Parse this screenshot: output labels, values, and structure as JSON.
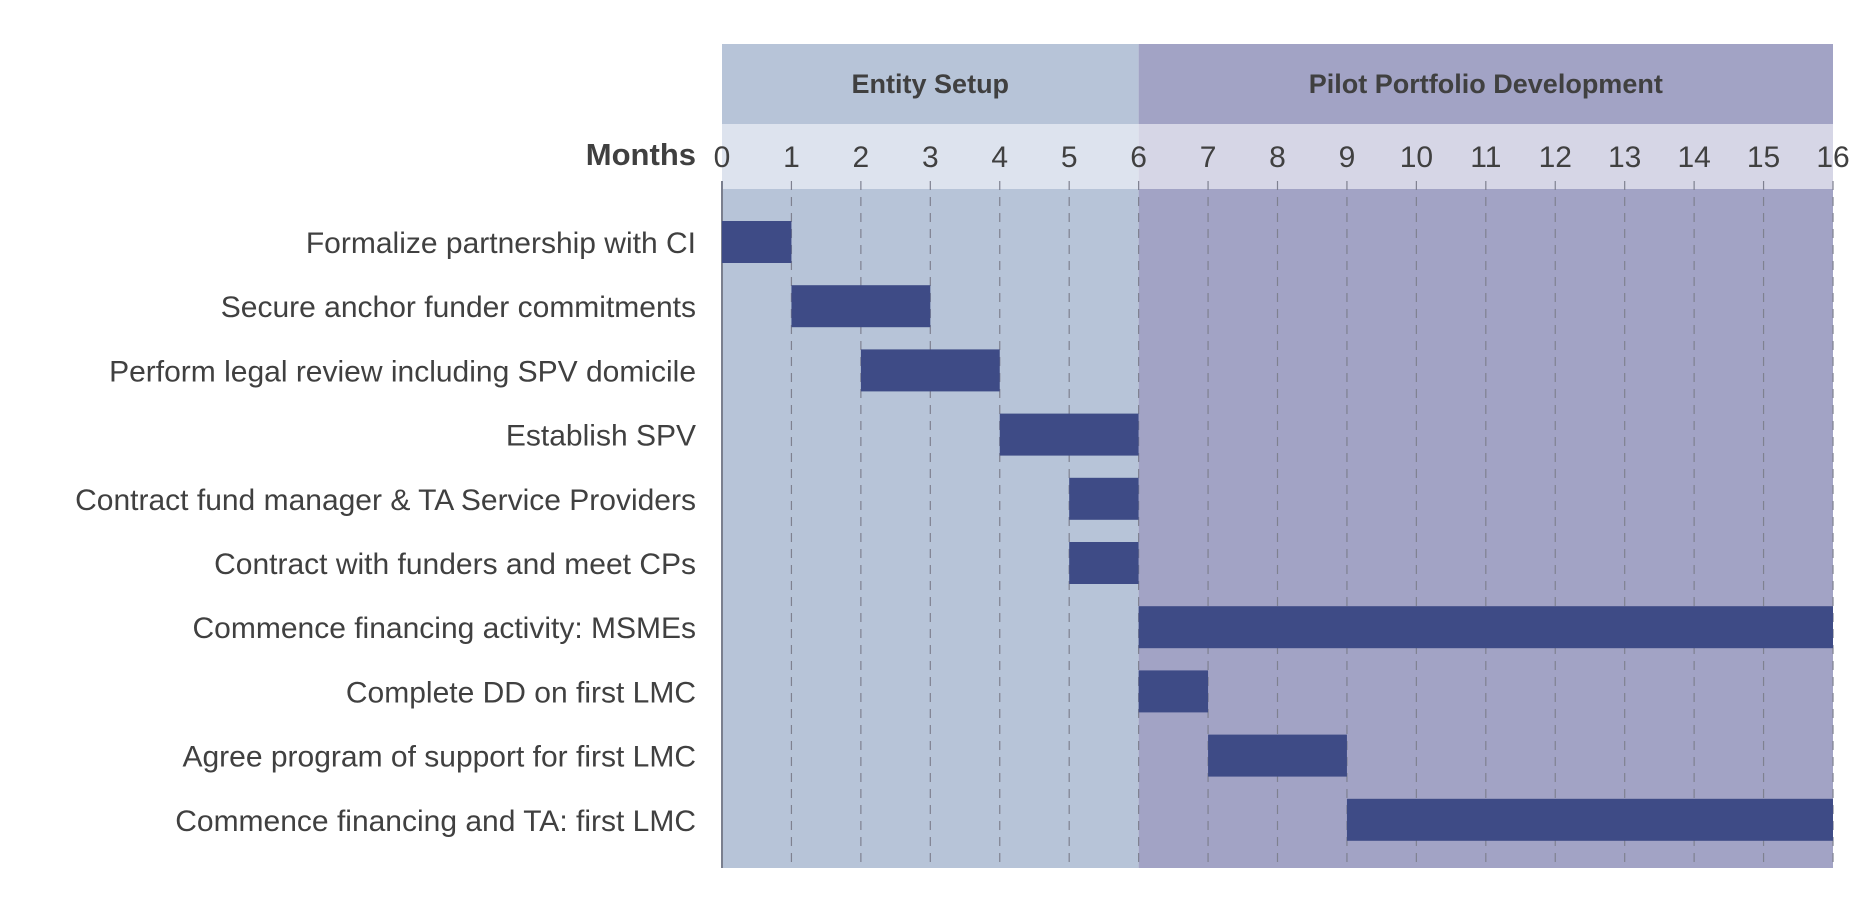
{
  "chart_data": {
    "type": "gantt",
    "xlabel": "Months",
    "xlim": [
      0,
      16
    ],
    "ticks": [
      "0",
      "1",
      "2",
      "3",
      "4",
      "5",
      "6",
      "7",
      "8",
      "9",
      "10",
      "11",
      "12",
      "13",
      "14",
      "15",
      "16"
    ],
    "phases": [
      {
        "name": "Entity Setup",
        "start": 0,
        "end": 6,
        "color": "#b7c4d8",
        "axis_color": "#dde3ee"
      },
      {
        "name": "Pilot Portfolio Development",
        "start": 6,
        "end": 16,
        "color": "#a2a3c5",
        "axis_color": "#d6d6e6"
      }
    ],
    "tasks": [
      {
        "label": "Formalize partnership with CI",
        "start": 0,
        "end": 1
      },
      {
        "label": "Secure anchor funder commitments",
        "start": 1,
        "end": 3
      },
      {
        "label": "Perform legal review including SPV domicile",
        "start": 2,
        "end": 4
      },
      {
        "label": "Establish SPV",
        "start": 4,
        "end": 6
      },
      {
        "label": "Contract fund manager & TA Service Providers",
        "start": 5,
        "end": 6
      },
      {
        "label": "Contract with funders and meet CPs",
        "start": 5,
        "end": 6
      },
      {
        "label": "Commence financing activity: MSMEs",
        "start": 6,
        "end": 16
      },
      {
        "label": "Complete DD on first LMC",
        "start": 6,
        "end": 7
      },
      {
        "label": "Agree program of support for first LMC",
        "start": 7,
        "end": 9
      },
      {
        "label": "Commence financing and TA: first LMC",
        "start": 9,
        "end": 16
      }
    ],
    "bar_color": "#3e4b86",
    "grid": "dashed-vertical"
  }
}
